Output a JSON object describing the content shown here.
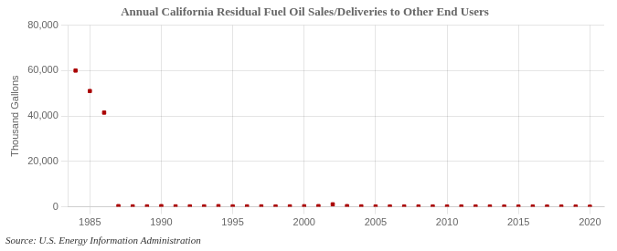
{
  "chart_data": {
    "type": "scatter",
    "title": "Annual California Residual Fuel Oil Sales/Deliveries to Other End Users",
    "ylabel": "Thousand Gallons",
    "annotations": [
      "Source: U.S. Energy Information Administration"
    ],
    "x": [
      1984,
      1985,
      1986,
      1987,
      1988,
      1989,
      1990,
      1991,
      1992,
      1993,
      1994,
      1995,
      1996,
      1997,
      1998,
      1999,
      2000,
      2001,
      2002,
      2003,
      2004,
      2005,
      2006,
      2007,
      2008,
      2009,
      2010,
      2011,
      2012,
      2013,
      2014,
      2015,
      2016,
      2017,
      2018,
      2019,
      2020
    ],
    "values": [
      60000,
      51000,
      41500,
      300,
      200,
      200,
      300,
      200,
      200,
      200,
      300,
      200,
      200,
      200,
      150,
      200,
      250,
      300,
      1100,
      300,
      200,
      150,
      150,
      150,
      150,
      150,
      150,
      150,
      150,
      150,
      100,
      100,
      150,
      100,
      100,
      100,
      50
    ],
    "color": "#aa0000",
    "marker": "square",
    "xlim": [
      1983.5,
      2021
    ],
    "xticks": [
      1985,
      1990,
      1995,
      2000,
      2005,
      2010,
      2015,
      2020
    ],
    "ylim": [
      0,
      80000
    ],
    "yticks": [
      0,
      {
        "value": 20000,
        "label": "20,000"
      },
      {
        "value": 40000,
        "label": "40,000"
      },
      {
        "value": 60000,
        "label": "60,000"
      },
      {
        "value": 80000,
        "label": "80,000"
      }
    ],
    "grid": true
  }
}
